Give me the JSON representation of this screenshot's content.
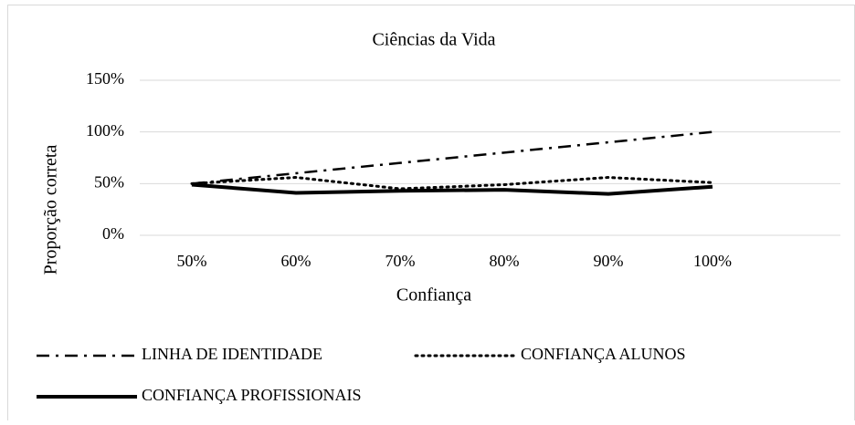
{
  "chart_data": {
    "type": "line",
    "title": "Ciências da Vida",
    "x_label": "Confiança",
    "y_label": "Proporção correta",
    "categories": [
      "50%",
      "60%",
      "70%",
      "80%",
      "90%",
      "100%"
    ],
    "series": [
      {
        "name": "LINHA DE IDENTIDADE",
        "color": "#000000",
        "dash": "dash-dot",
        "values": [
          50,
          60,
          70,
          80,
          90,
          100
        ]
      },
      {
        "name": "CONFIANÇA ALUNOS",
        "color": "#000000",
        "dash": "dotted",
        "values": [
          50,
          56,
          45,
          49,
          56,
          51
        ]
      },
      {
        "name": "CONFIANÇA PROFISSIONAIS",
        "color": "#000000",
        "dash": "solid",
        "values": [
          49,
          41,
          43,
          44,
          40,
          47
        ]
      }
    ],
    "ylim": [
      0,
      150
    ],
    "yticks": [
      {
        "value": 0,
        "label": "0%"
      },
      {
        "value": 50,
        "label": "50%"
      },
      {
        "value": 100,
        "label": "100%"
      },
      {
        "value": 150,
        "label": "150%"
      }
    ],
    "grid": true,
    "legend": "bottom"
  }
}
